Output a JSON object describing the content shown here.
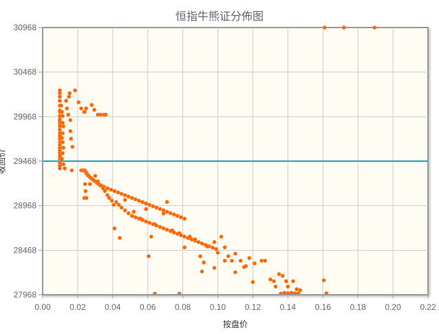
{
  "chart_data": {
    "type": "scatter",
    "title": "恒指牛熊证分佈图",
    "xlabel": "按盘价",
    "ylabel": "收回价",
    "xlim": [
      0.0,
      0.22
    ],
    "ylim": [
      27968,
      30968
    ],
    "x_ticks": [
      "0.00",
      "0.02",
      "0.04",
      "0.06",
      "0.08",
      "0.10",
      "0.12",
      "0.14",
      "0.16",
      "0.18",
      "0.20",
      "0.22"
    ],
    "y_ticks": [
      "27968",
      "28468",
      "28968",
      "29468",
      "29968",
      "30468",
      "30968"
    ],
    "grid": true,
    "legend": null,
    "colors": {
      "points": "#ff6600",
      "reference_line": "#2aa0c0",
      "plot_background": "#fffcf3",
      "axis": "#999999",
      "grid": "#cccccc",
      "text": "#666666"
    },
    "reference_line": {
      "orientation": "horizontal",
      "y": 29468
    },
    "series": [
      {
        "name": "牛熊证",
        "points": [
          [
            0.0098,
            30262
          ],
          [
            0.0098,
            30231
          ],
          [
            0.0098,
            30192
          ],
          [
            0.0098,
            30146
          ],
          [
            0.0098,
            30092
          ],
          [
            0.0098,
            30037
          ],
          [
            0.0098,
            30021
          ],
          [
            0.0098,
            29975
          ],
          [
            0.0098,
            29936
          ],
          [
            0.0098,
            29913
          ],
          [
            0.0098,
            29890
          ],
          [
            0.0098,
            29859
          ],
          [
            0.0098,
            29820
          ],
          [
            0.0098,
            29782
          ],
          [
            0.0098,
            29751
          ],
          [
            0.0098,
            29720
          ],
          [
            0.0098,
            29681
          ],
          [
            0.0098,
            29650
          ],
          [
            0.0098,
            29619
          ],
          [
            0.0098,
            29588
          ],
          [
            0.0098,
            29557
          ],
          [
            0.0098,
            29526
          ],
          [
            0.0098,
            29495
          ],
          [
            0.0098,
            29449
          ],
          [
            0.0098,
            29418
          ],
          [
            0.0098,
            29387
          ],
          [
            0.0106,
            30092
          ],
          [
            0.011,
            30021
          ],
          [
            0.0114,
            29975
          ],
          [
            0.0114,
            29898
          ],
          [
            0.0118,
            29859
          ],
          [
            0.0114,
            29782
          ],
          [
            0.011,
            29728
          ],
          [
            0.0114,
            29681
          ],
          [
            0.0118,
            29619
          ],
          [
            0.0114,
            29557
          ],
          [
            0.011,
            29495
          ],
          [
            0.0118,
            29433
          ],
          [
            0.0126,
            29387
          ],
          [
            0.0134,
            30146
          ],
          [
            0.0138,
            30060
          ],
          [
            0.0146,
            29990
          ],
          [
            0.015,
            30192
          ],
          [
            0.0154,
            30231
          ],
          [
            0.0158,
            29928
          ],
          [
            0.0158,
            29805
          ],
          [
            0.0162,
            29720
          ],
          [
            0.017,
            29628
          ],
          [
            0.0166,
            29364
          ],
          [
            0.0185,
            30262
          ],
          [
            0.0205,
            30129
          ],
          [
            0.022,
            30060
          ],
          [
            0.0236,
            30021
          ],
          [
            0.024,
            30021
          ],
          [
            0.0248,
            30060
          ],
          [
            0.028,
            30099
          ],
          [
            0.0295,
            30044
          ],
          [
            0.0315,
            29990
          ],
          [
            0.033,
            29990
          ],
          [
            0.035,
            29990
          ],
          [
            0.036,
            29990
          ],
          [
            0.022,
            29364
          ],
          [
            0.023,
            29364
          ],
          [
            0.024,
            29364
          ],
          [
            0.0245,
            29349
          ],
          [
            0.025,
            29334
          ],
          [
            0.0255,
            29318
          ],
          [
            0.0262,
            29303
          ],
          [
            0.027,
            29287
          ],
          [
            0.028,
            29272
          ],
          [
            0.029,
            29256
          ],
          [
            0.03,
            29241
          ],
          [
            0.031,
            29225
          ],
          [
            0.032,
            29210
          ],
          [
            0.0335,
            29194
          ],
          [
            0.035,
            29179
          ],
          [
            0.037,
            29163
          ],
          [
            0.039,
            29148
          ],
          [
            0.041,
            29132
          ],
          [
            0.043,
            29117
          ],
          [
            0.045,
            29101
          ],
          [
            0.047,
            29086
          ],
          [
            0.049,
            29070
          ],
          [
            0.051,
            29055
          ],
          [
            0.053,
            29039
          ],
          [
            0.055,
            29024
          ],
          [
            0.057,
            29008
          ],
          [
            0.059,
            28993
          ],
          [
            0.061,
            28977
          ],
          [
            0.063,
            28962
          ],
          [
            0.065,
            28946
          ],
          [
            0.067,
            28931
          ],
          [
            0.069,
            28915
          ],
          [
            0.071,
            28900
          ],
          [
            0.073,
            28884
          ],
          [
            0.075,
            28869
          ],
          [
            0.077,
            28853
          ],
          [
            0.079,
            28838
          ],
          [
            0.081,
            28822
          ],
          [
            0.0242,
            29210
          ],
          [
            0.0245,
            29132
          ],
          [
            0.0238,
            29055
          ],
          [
            0.025,
            29055
          ],
          [
            0.027,
            29210
          ],
          [
            0.029,
            29256
          ],
          [
            0.03,
            29303
          ],
          [
            0.0315,
            29241
          ],
          [
            0.033,
            29194
          ],
          [
            0.0345,
            29163
          ],
          [
            0.0355,
            29132
          ],
          [
            0.037,
            29086
          ],
          [
            0.038,
            29055
          ],
          [
            0.0395,
            29024
          ],
          [
            0.0405,
            28977
          ],
          [
            0.042,
            29008
          ],
          [
            0.0435,
            28977
          ],
          [
            0.045,
            28946
          ],
          [
            0.047,
            28915
          ],
          [
            0.049,
            28884
          ],
          [
            0.051,
            28853
          ],
          [
            0.053,
            28838
          ],
          [
            0.055,
            28822
          ],
          [
            0.057,
            28807
          ],
          [
            0.059,
            28791
          ],
          [
            0.061,
            28776
          ],
          [
            0.063,
            28760
          ],
          [
            0.065,
            28745
          ],
          [
            0.067,
            28729
          ],
          [
            0.069,
            28714
          ],
          [
            0.071,
            28698
          ],
          [
            0.073,
            28683
          ],
          [
            0.075,
            28667
          ],
          [
            0.077,
            28652
          ],
          [
            0.079,
            28636
          ],
          [
            0.081,
            28621
          ],
          [
            0.083,
            28605
          ],
          [
            0.085,
            28590
          ],
          [
            0.087,
            28574
          ],
          [
            0.089,
            28559
          ],
          [
            0.091,
            28543
          ],
          [
            0.093,
            28528
          ],
          [
            0.095,
            28512
          ],
          [
            0.097,
            28497
          ],
          [
            0.099,
            28481
          ],
          [
            0.041,
            28713
          ],
          [
            0.044,
            28606
          ],
          [
            0.047,
            29033
          ],
          [
            0.052,
            28900
          ],
          [
            0.056,
            28822
          ],
          [
            0.059,
            28930
          ],
          [
            0.062,
            28620
          ],
          [
            0.064,
            28760
          ],
          [
            0.069,
            28880
          ],
          [
            0.071,
            29010
          ],
          [
            0.074,
            28690
          ],
          [
            0.078,
            28660
          ],
          [
            0.081,
            28500
          ],
          [
            0.084,
            28620
          ],
          [
            0.087,
            28590
          ],
          [
            0.09,
            28400
          ],
          [
            0.092,
            28330
          ],
          [
            0.094,
            28510
          ],
          [
            0.098,
            28560
          ],
          [
            0.1,
            28440
          ],
          [
            0.102,
            28620
          ],
          [
            0.104,
            28500
          ],
          [
            0.106,
            28400
          ],
          [
            0.108,
            28350
          ],
          [
            0.11,
            28430
          ],
          [
            0.113,
            28350
          ],
          [
            0.116,
            28290
          ],
          [
            0.118,
            28380
          ],
          [
            0.121,
            28320
          ],
          [
            0.125,
            28350
          ],
          [
            0.127,
            28350
          ],
          [
            0.13,
            28140
          ],
          [
            0.132,
            28120
          ],
          [
            0.135,
            28200
          ],
          [
            0.137,
            28180
          ],
          [
            0.139,
            28120
          ],
          [
            0.14,
            28060
          ],
          [
            0.143,
            28120
          ],
          [
            0.145,
            28030
          ],
          [
            0.147,
            28020
          ],
          [
            0.142,
            27990
          ],
          [
            0.144,
            27984
          ],
          [
            0.146,
            27984
          ],
          [
            0.0605,
            28400
          ],
          [
            0.064,
            27980
          ],
          [
            0.078,
            27980
          ],
          [
            0.091,
            28230
          ],
          [
            0.098,
            28270
          ],
          [
            0.104,
            28350
          ],
          [
            0.11,
            28220
          ],
          [
            0.115,
            28280
          ],
          [
            0.12,
            28110
          ],
          [
            0.133,
            28060
          ],
          [
            0.136,
            27980
          ],
          [
            0.138,
            27990
          ],
          [
            0.14,
            27984
          ],
          [
            0.1605,
            28130
          ],
          [
            0.162,
            27984
          ],
          [
            0.161,
            30968
          ],
          [
            0.172,
            30968
          ],
          [
            0.1895,
            30968
          ]
        ]
      }
    ]
  }
}
